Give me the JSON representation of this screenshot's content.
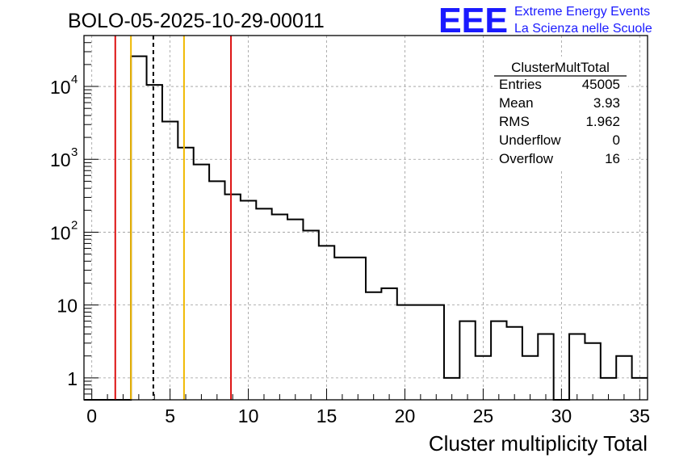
{
  "page_title": "BOLO-05-2025-10-29-00011",
  "logo": {
    "mark": "EEE",
    "line1": "Extreme Energy Events",
    "line2": "La Scienza nelle Scuole",
    "color": "#1a1aff"
  },
  "chart_data": {
    "type": "histogram",
    "title": "BOLO-05-2025-10-29-00011",
    "xlabel": "Cluster multiplicity Total",
    "ylabel": "",
    "xlim": [
      -0.5,
      35.5
    ],
    "ylim": [
      0.5,
      50000
    ],
    "yscale": "log",
    "grid": true,
    "bin_width": 1,
    "bin_lows": [
      -0.5,
      0.5,
      1.5,
      2.5,
      3.5,
      4.5,
      5.5,
      6.5,
      7.5,
      8.5,
      9.5,
      10.5,
      11.5,
      12.5,
      13.5,
      14.5,
      15.5,
      16.5,
      17.5,
      18.5,
      19.5,
      20.5,
      21.5,
      22.5,
      23.5,
      24.5,
      25.5,
      26.5,
      27.5,
      28.5,
      29.5,
      30.5,
      31.5,
      32.5,
      33.5,
      34.5
    ],
    "counts": [
      0,
      0,
      0,
      26000,
      10500,
      3300,
      1450,
      850,
      500,
      330,
      270,
      210,
      175,
      150,
      105,
      65,
      45,
      45,
      15,
      17,
      10,
      10,
      10,
      1,
      6,
      2,
      6,
      5,
      2,
      4,
      0,
      4,
      3,
      1,
      2,
      1
    ],
    "x_ticks": [
      "0",
      "5",
      "10",
      "15",
      "20",
      "25",
      "30",
      "35"
    ],
    "x_tick_values": [
      0,
      5,
      10,
      15,
      20,
      25,
      30,
      35
    ],
    "y_ticks": [
      {
        "value": 1,
        "base": "1",
        "exp": ""
      },
      {
        "value": 10,
        "base": "10",
        "exp": ""
      },
      {
        "value": 100,
        "base": "10",
        "exp": "2"
      },
      {
        "value": 1000,
        "base": "10",
        "exp": "3"
      },
      {
        "value": 10000,
        "base": "10",
        "exp": "4"
      }
    ],
    "vertical_lines": [
      {
        "x": 1.5,
        "color": "#dd1111",
        "style": "solid"
      },
      {
        "x": 2.5,
        "color": "#f0b800",
        "style": "solid"
      },
      {
        "x": 3.93,
        "color": "#000000",
        "style": "dashed"
      },
      {
        "x": 5.89,
        "color": "#f0b800",
        "style": "solid"
      },
      {
        "x": 8.89,
        "color": "#dd1111",
        "style": "solid"
      }
    ],
    "stats_box": {
      "title": "ClusterMultTotal",
      "rows": [
        {
          "label": "Entries",
          "value": "45005"
        },
        {
          "label": "Mean",
          "value": "3.93"
        },
        {
          "label": "RMS",
          "value": "1.962"
        },
        {
          "label": "Underflow",
          "value": "0"
        },
        {
          "label": "Overflow",
          "value": "16"
        }
      ],
      "placement": "top-right"
    }
  }
}
